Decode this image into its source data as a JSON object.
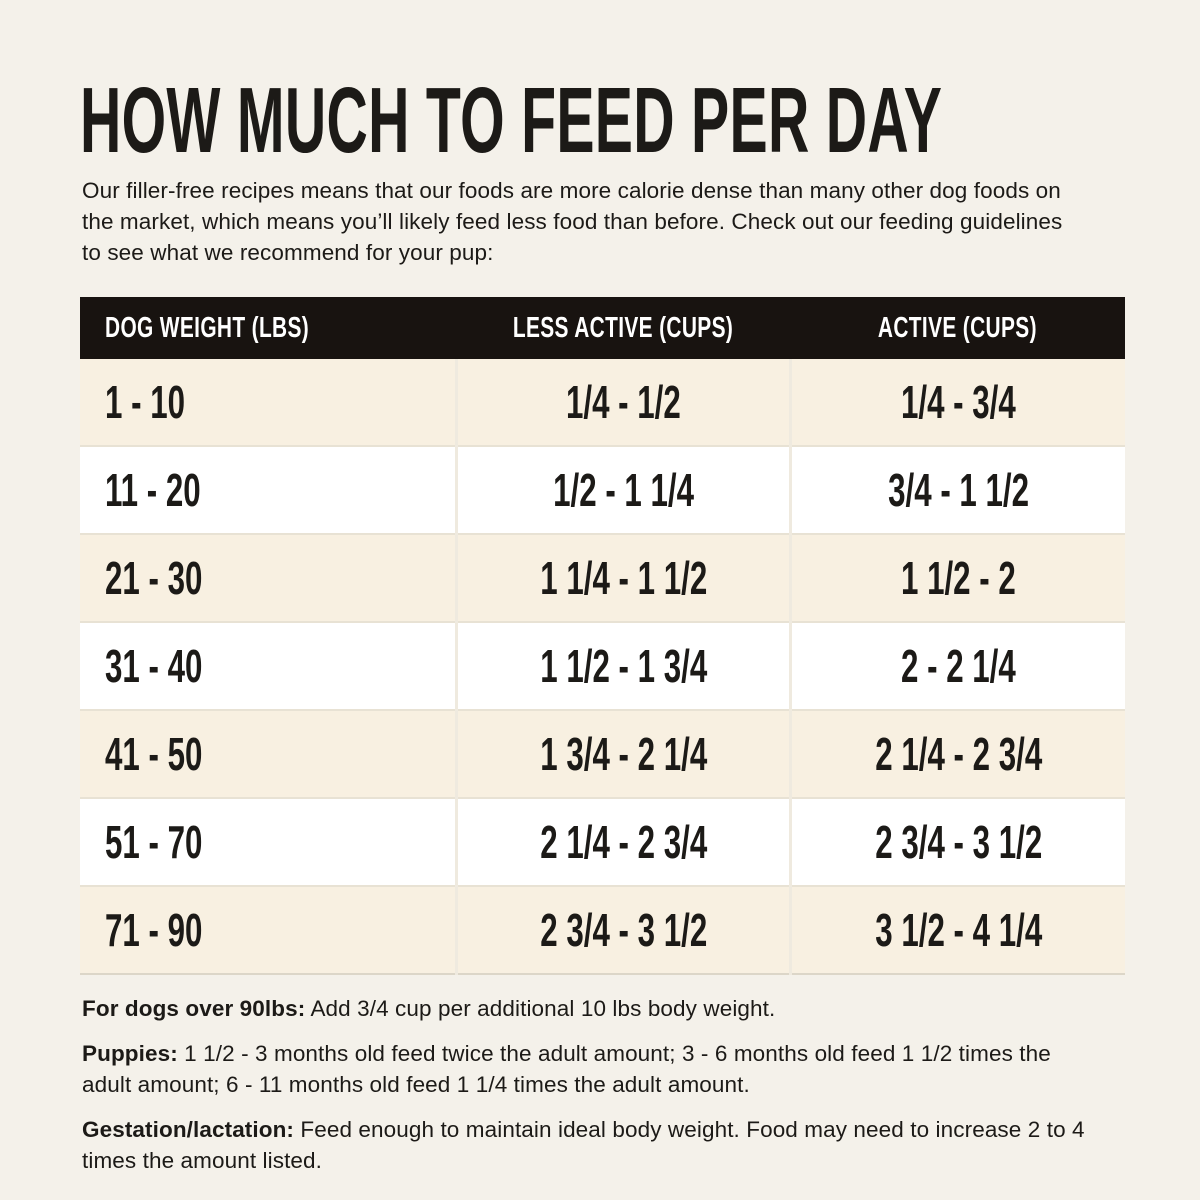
{
  "page": {
    "title": "HOW MUCH TO FEED PER DAY",
    "intro": "Our filler-free recipes means that our foods are more calorie dense than many other dog foods on the market, which means you’ll likely feed less food than before. Check out our feeding guidelines to see what we recommend for your pup:"
  },
  "colors": {
    "page_bg": "#f4f1ea",
    "header_bg": "#181310",
    "header_text": "#ffffff",
    "row_cream": "#f8f0e1",
    "row_white": "#ffffff",
    "text": "#1c1a17",
    "divider": "#efeadf"
  },
  "chart_data": {
    "type": "table",
    "columns": [
      "DOG WEIGHT (LBS)",
      "LESS ACTIVE (CUPS)",
      "ACTIVE (CUPS)"
    ],
    "rows": [
      [
        "1 - 10",
        "1/4 - 1/2",
        "1/4 - 3/4"
      ],
      [
        "11 - 20",
        "1/2 - 1 1/4",
        "3/4 - 1 1/2"
      ],
      [
        "21 - 30",
        "1 1/4 - 1 1/2",
        "1 1/2 - 2"
      ],
      [
        "31 - 40",
        "1 1/2 - 1 3/4",
        "2 - 2 1/4"
      ],
      [
        "41 - 50",
        "1 3/4 - 2 1/4",
        "2 1/4 - 2 3/4"
      ],
      [
        "51 - 70",
        "2 1/4 - 2 3/4",
        "2 3/4 - 3 1/2"
      ],
      [
        "71 - 90",
        "2 3/4 - 3 1/2",
        "3 1/2 - 4 1/4"
      ]
    ]
  },
  "notes": [
    {
      "label": "For dogs over 90lbs:",
      "text": "Add 3/4 cup per additional 10 lbs body weight."
    },
    {
      "label": "Puppies:",
      "text": "1 1/2 - 3 months old feed twice the adult amount; 3 - 6 months old feed 1 1/2 times the adult amount; 6 - 11 months old feed 1 1/4 times the adult amount."
    },
    {
      "label": "Gestation/lactation:",
      "text": "Feed enough to maintain ideal body weight. Food may need to increase 2 to 4 times the amount listed."
    }
  ]
}
